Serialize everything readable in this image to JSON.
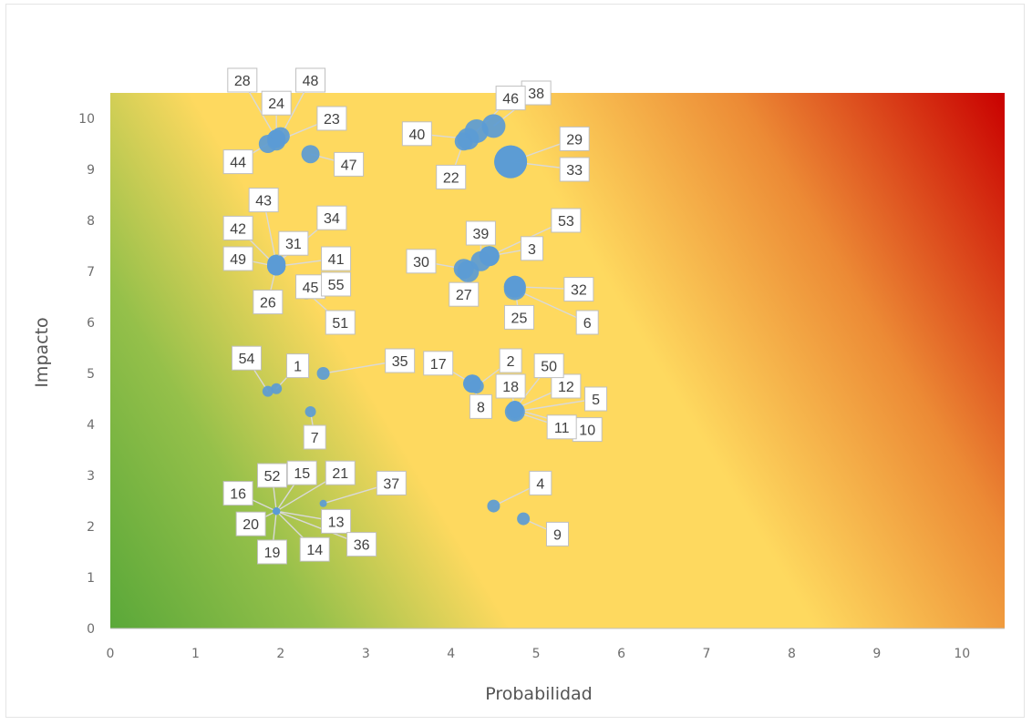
{
  "chart_data": {
    "type": "scatter",
    "xlabel": "Probabilidad",
    "ylabel": "Impacto",
    "xlim": [
      0,
      10.5
    ],
    "ylim": [
      0,
      10.5
    ],
    "x_ticks": [
      0,
      1,
      2,
      3,
      4,
      5,
      6,
      7,
      8,
      9,
      10
    ],
    "y_ticks": [
      0,
      1,
      2,
      3,
      4,
      5,
      6,
      7,
      8,
      9,
      10
    ],
    "grid": false,
    "legend": "none",
    "background": "heat gradient green (bottom-left) to yellow to red (top-right)",
    "colors": {
      "point": "#5b9bd5",
      "low": "#5aa839",
      "mid": "#fed95f",
      "high": "#c90000"
    },
    "points": [
      {
        "id": "1",
        "x": 1.95,
        "y": 4.7,
        "r": 6,
        "label": "1"
      },
      {
        "id": "2",
        "x": 4.3,
        "y": 4.75,
        "r": 8,
        "label": "2"
      },
      {
        "id": "3",
        "x": 4.45,
        "y": 7.3,
        "r": 11,
        "label": "3"
      },
      {
        "id": "4",
        "x": 4.5,
        "y": 2.4,
        "r": 7,
        "label": "4"
      },
      {
        "id": "5",
        "x": 4.75,
        "y": 4.25,
        "r": 11,
        "label": "5"
      },
      {
        "id": "6",
        "x": 4.75,
        "y": 6.65,
        "r": 12,
        "label": "6"
      },
      {
        "id": "7",
        "x": 2.35,
        "y": 4.25,
        "r": 6,
        "label": "7"
      },
      {
        "id": "8",
        "x": 4.25,
        "y": 4.8,
        "r": 10,
        "label": "8"
      },
      {
        "id": "9",
        "x": 4.85,
        "y": 2.15,
        "r": 7,
        "label": "9"
      },
      {
        "id": "10",
        "x": 4.75,
        "y": 4.3,
        "r": 9,
        "label": "10"
      },
      {
        "id": "11",
        "x": 4.75,
        "y": 4.25,
        "r": 9,
        "label": "11"
      },
      {
        "id": "12",
        "x": 4.75,
        "y": 4.3,
        "r": 9,
        "label": "12"
      },
      {
        "id": "13",
        "x": 1.95,
        "y": 2.3,
        "r": 4,
        "label": "13"
      },
      {
        "id": "14",
        "x": 1.95,
        "y": 2.3,
        "r": 4,
        "label": "14"
      },
      {
        "id": "15",
        "x": 1.95,
        "y": 2.3,
        "r": 4,
        "label": "15"
      },
      {
        "id": "16",
        "x": 1.95,
        "y": 2.3,
        "r": 4,
        "label": "16"
      },
      {
        "id": "17",
        "x": 4.25,
        "y": 4.8,
        "r": 10,
        "label": "17"
      },
      {
        "id": "18",
        "x": 4.75,
        "y": 4.3,
        "r": 9,
        "label": "18"
      },
      {
        "id": "19",
        "x": 1.95,
        "y": 2.3,
        "r": 4,
        "label": "19"
      },
      {
        "id": "20",
        "x": 1.95,
        "y": 2.3,
        "r": 4,
        "label": "20"
      },
      {
        "id": "21",
        "x": 1.95,
        "y": 2.3,
        "r": 4,
        "label": "21"
      },
      {
        "id": "22",
        "x": 4.15,
        "y": 9.55,
        "r": 10,
        "label": "22"
      },
      {
        "id": "23",
        "x": 1.95,
        "y": 9.55,
        "r": 10,
        "label": "23"
      },
      {
        "id": "24",
        "x": 1.95,
        "y": 9.6,
        "r": 10,
        "label": "24"
      },
      {
        "id": "25",
        "x": 4.75,
        "y": 6.7,
        "r": 12,
        "label": "25"
      },
      {
        "id": "26",
        "x": 1.95,
        "y": 7.1,
        "r": 10,
        "label": "26"
      },
      {
        "id": "27",
        "x": 4.2,
        "y": 7.0,
        "r": 12,
        "label": "27"
      },
      {
        "id": "28",
        "x": 1.95,
        "y": 9.6,
        "r": 10,
        "label": "28"
      },
      {
        "id": "29",
        "x": 4.7,
        "y": 9.15,
        "r": 18,
        "label": "29"
      },
      {
        "id": "30",
        "x": 4.15,
        "y": 7.05,
        "r": 11,
        "label": "30"
      },
      {
        "id": "31",
        "x": 1.95,
        "y": 7.1,
        "r": 10,
        "label": "31"
      },
      {
        "id": "32",
        "x": 4.75,
        "y": 6.7,
        "r": 12,
        "label": "32"
      },
      {
        "id": "33",
        "x": 4.7,
        "y": 9.15,
        "r": 18,
        "label": "33"
      },
      {
        "id": "34",
        "x": 1.95,
        "y": 7.15,
        "r": 10,
        "label": "34"
      },
      {
        "id": "35",
        "x": 2.5,
        "y": 5.0,
        "r": 7,
        "label": "35"
      },
      {
        "id": "36",
        "x": 1.95,
        "y": 2.3,
        "r": 4,
        "label": "36"
      },
      {
        "id": "37",
        "x": 2.5,
        "y": 2.45,
        "r": 4,
        "label": "37"
      },
      {
        "id": "38",
        "x": 4.5,
        "y": 9.85,
        "r": 13,
        "label": "38"
      },
      {
        "id": "39",
        "x": 4.35,
        "y": 7.2,
        "r": 11,
        "label": "39"
      },
      {
        "id": "40",
        "x": 4.2,
        "y": 9.6,
        "r": 12,
        "label": "40"
      },
      {
        "id": "41",
        "x": 1.95,
        "y": 7.1,
        "r": 10,
        "label": "41"
      },
      {
        "id": "42",
        "x": 1.95,
        "y": 7.1,
        "r": 10,
        "label": "42"
      },
      {
        "id": "43",
        "x": 1.95,
        "y": 7.15,
        "r": 10,
        "label": "43"
      },
      {
        "id": "44",
        "x": 1.85,
        "y": 9.5,
        "r": 10,
        "label": "44"
      },
      {
        "id": "45",
        "x": 2.3,
        "y": 6.6,
        "r": 8,
        "label": "45"
      },
      {
        "id": "46",
        "x": 4.3,
        "y": 9.75,
        "r": 13,
        "label": "46"
      },
      {
        "id": "47",
        "x": 2.35,
        "y": 9.3,
        "r": 10,
        "label": "47"
      },
      {
        "id": "48",
        "x": 2.0,
        "y": 9.65,
        "r": 10,
        "label": "48"
      },
      {
        "id": "49",
        "x": 1.95,
        "y": 7.1,
        "r": 10,
        "label": "49"
      },
      {
        "id": "50",
        "x": 4.75,
        "y": 4.3,
        "r": 9,
        "label": "50"
      },
      {
        "id": "51",
        "x": 2.3,
        "y": 6.6,
        "r": 8,
        "label": "51"
      },
      {
        "id": "52",
        "x": 1.95,
        "y": 2.3,
        "r": 4,
        "label": "52"
      },
      {
        "id": "53",
        "x": 4.45,
        "y": 7.3,
        "r": 11,
        "label": "53"
      },
      {
        "id": "54",
        "x": 1.85,
        "y": 4.65,
        "r": 6,
        "label": "54"
      },
      {
        "id": "55",
        "x": 2.3,
        "y": 6.6,
        "r": 8,
        "label": "55"
      }
    ],
    "data_labels": [
      {
        "text": "1",
        "x": 2.2,
        "y": 5.15,
        "of": "1"
      },
      {
        "text": "2",
        "x": 4.7,
        "y": 5.25,
        "of": "2"
      },
      {
        "text": "3",
        "x": 4.95,
        "y": 7.45,
        "of": "3"
      },
      {
        "text": "4",
        "x": 5.05,
        "y": 2.85,
        "of": "4"
      },
      {
        "text": "5",
        "x": 5.7,
        "y": 4.5,
        "of": "5"
      },
      {
        "text": "6",
        "x": 5.6,
        "y": 6.0,
        "of": "6"
      },
      {
        "text": "7",
        "x": 2.4,
        "y": 3.75,
        "of": "7"
      },
      {
        "text": "8",
        "x": 4.35,
        "y": 4.35,
        "of": "8"
      },
      {
        "text": "9",
        "x": 5.25,
        "y": 1.85,
        "of": "9"
      },
      {
        "text": "10",
        "x": 5.6,
        "y": 3.9,
        "of": "10"
      },
      {
        "text": "11",
        "x": 5.3,
        "y": 3.95,
        "of": "11"
      },
      {
        "text": "12",
        "x": 5.35,
        "y": 4.75,
        "of": "12"
      },
      {
        "text": "13",
        "x": 2.65,
        "y": 2.1,
        "of": "13"
      },
      {
        "text": "14",
        "x": 2.4,
        "y": 1.55,
        "of": "14"
      },
      {
        "text": "15",
        "x": 2.25,
        "y": 3.05,
        "of": "15"
      },
      {
        "text": "16",
        "x": 1.5,
        "y": 2.65,
        "of": "16"
      },
      {
        "text": "17",
        "x": 3.85,
        "y": 5.2,
        "of": "17"
      },
      {
        "text": "18",
        "x": 4.7,
        "y": 4.75,
        "of": "18"
      },
      {
        "text": "19",
        "x": 1.9,
        "y": 1.5,
        "of": "19"
      },
      {
        "text": "20",
        "x": 1.65,
        "y": 2.05,
        "of": "20"
      },
      {
        "text": "21",
        "x": 2.7,
        "y": 3.05,
        "of": "21"
      },
      {
        "text": "22",
        "x": 4.0,
        "y": 8.85,
        "of": "22"
      },
      {
        "text": "23",
        "x": 2.6,
        "y": 10.0,
        "of": "23"
      },
      {
        "text": "24",
        "x": 1.95,
        "y": 10.3,
        "of": "24"
      },
      {
        "text": "25",
        "x": 4.8,
        "y": 6.1,
        "of": "25"
      },
      {
        "text": "26",
        "x": 1.85,
        "y": 6.4,
        "of": "26"
      },
      {
        "text": "27",
        "x": 4.15,
        "y": 6.55,
        "of": "27"
      },
      {
        "text": "28",
        "x": 1.55,
        "y": 10.75,
        "of": "28"
      },
      {
        "text": "29",
        "x": 5.45,
        "y": 9.6,
        "of": "29"
      },
      {
        "text": "30",
        "x": 3.65,
        "y": 7.2,
        "of": "30"
      },
      {
        "text": "31",
        "x": 2.15,
        "y": 7.55,
        "of": "31"
      },
      {
        "text": "32",
        "x": 5.5,
        "y": 6.65,
        "of": "32"
      },
      {
        "text": "33",
        "x": 5.45,
        "y": 9.0,
        "of": "33"
      },
      {
        "text": "34",
        "x": 2.6,
        "y": 8.05,
        "of": "34"
      },
      {
        "text": "35",
        "x": 3.4,
        "y": 5.25,
        "of": "35"
      },
      {
        "text": "36",
        "x": 2.95,
        "y": 1.65,
        "of": "36"
      },
      {
        "text": "37",
        "x": 3.3,
        "y": 2.85,
        "of": "37"
      },
      {
        "text": "38",
        "x": 5.0,
        "y": 10.5,
        "of": "38"
      },
      {
        "text": "39",
        "x": 4.35,
        "y": 7.75,
        "of": "39"
      },
      {
        "text": "40",
        "x": 3.6,
        "y": 9.7,
        "of": "40"
      },
      {
        "text": "41",
        "x": 2.65,
        "y": 7.25,
        "of": "41"
      },
      {
        "text": "42",
        "x": 1.5,
        "y": 7.85,
        "of": "42"
      },
      {
        "text": "43",
        "x": 1.8,
        "y": 8.4,
        "of": "43"
      },
      {
        "text": "44",
        "x": 1.5,
        "y": 9.15,
        "of": "44"
      },
      {
        "text": "45",
        "x": 2.35,
        "y": 6.7,
        "of": "45"
      },
      {
        "text": "46",
        "x": 4.7,
        "y": 10.4,
        "of": "46"
      },
      {
        "text": "47",
        "x": 2.8,
        "y": 9.1,
        "of": "47"
      },
      {
        "text": "48",
        "x": 2.35,
        "y": 10.75,
        "of": "48"
      },
      {
        "text": "49",
        "x": 1.5,
        "y": 7.25,
        "of": "49"
      },
      {
        "text": "50",
        "x": 5.15,
        "y": 5.15,
        "of": "50"
      },
      {
        "text": "51",
        "x": 2.7,
        "y": 6.0,
        "of": "51"
      },
      {
        "text": "52",
        "x": 1.9,
        "y": 3.0,
        "of": "52"
      },
      {
        "text": "53",
        "x": 5.35,
        "y": 8.0,
        "of": "53"
      },
      {
        "text": "54",
        "x": 1.6,
        "y": 5.3,
        "of": "54"
      },
      {
        "text": "55",
        "x": 2.65,
        "y": 6.75,
        "of": "55"
      }
    ]
  }
}
